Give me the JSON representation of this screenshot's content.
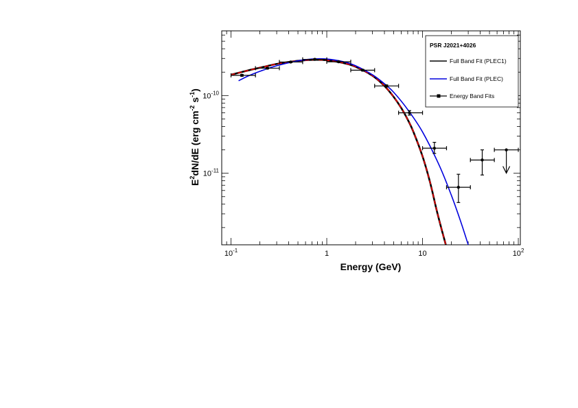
{
  "chart_data": {
    "type": "line",
    "title": "",
    "xlabel": "Energy (GeV)",
    "ylabel": "E²dN/dE (erg cm⁻² s⁻¹)",
    "x_scale": "log",
    "y_scale": "log",
    "xlim": [
      0.08,
      105
    ],
    "ylim": [
      1.2e-12,
      6.8e-10
    ],
    "x_ticks": [
      {
        "value": 0.1,
        "base": "10",
        "exp": "-1"
      },
      {
        "value": 1,
        "base": "1",
        "exp": ""
      },
      {
        "value": 10,
        "base": "10",
        "exp": ""
      },
      {
        "value": 100,
        "base": "10",
        "exp": "2"
      }
    ],
    "y_ticks": [
      {
        "value": 1e-10,
        "base": "10",
        "exp": "-10"
      },
      {
        "value": 1e-11,
        "base": "10",
        "exp": "-11"
      }
    ],
    "grid": false,
    "legend": {
      "position": "top-right",
      "title": "PSR J2021+4026",
      "entries": [
        {
          "label": "Full Band Fit (PLEC1)",
          "color": "#000000",
          "style": "line"
        },
        {
          "label": "Full Band Fit (PLEC)",
          "color": "#0000dd",
          "style": "line"
        },
        {
          "label": "Energy Band Fits",
          "color": "#000000",
          "style": "errorbar"
        }
      ]
    },
    "series": [
      {
        "name": "Full Band Fit (PLEC1)",
        "color": "#000000",
        "x": [
          0.1,
          0.15,
          0.2,
          0.3,
          0.4,
          0.5,
          0.7,
          1.0,
          1.5,
          2.0,
          3.0,
          4.0,
          5.0,
          6.0,
          7.0,
          8.0,
          10.0,
          12.0,
          14.0,
          16.0,
          17.5
        ],
        "y": [
          1.85e-10,
          2.1e-10,
          2.28e-10,
          2.55e-10,
          2.7e-10,
          2.8e-10,
          2.88e-10,
          2.85e-10,
          2.62e-10,
          2.35e-10,
          1.8e-10,
          1.33e-10,
          9.6e-11,
          6.9e-11,
          4.9e-11,
          3.45e-11,
          1.65e-11,
          7.6e-12,
          3.4e-12,
          1.8e-12,
          1.2e-12
        ]
      },
      {
        "name": "Full Band Fit (PLEC1, dashed)",
        "color": "#dd0000",
        "x": [
          0.1,
          0.15,
          0.2,
          0.3,
          0.4,
          0.5,
          0.7,
          1.0,
          1.5,
          2.0,
          3.0,
          4.0,
          5.0,
          6.0,
          7.0,
          8.0,
          10.0,
          12.0,
          14.0,
          16.0,
          17.5
        ],
        "y": [
          1.85e-10,
          2.1e-10,
          2.28e-10,
          2.55e-10,
          2.7e-10,
          2.8e-10,
          2.88e-10,
          2.85e-10,
          2.62e-10,
          2.35e-10,
          1.8e-10,
          1.33e-10,
          9.6e-11,
          6.9e-11,
          4.9e-11,
          3.45e-11,
          1.65e-11,
          7.6e-12,
          3.4e-12,
          1.8e-12,
          1.2e-12
        ]
      },
      {
        "name": "Full Band Fit (PLEC)",
        "color": "#0000dd",
        "x": [
          0.12,
          0.15,
          0.2,
          0.3,
          0.5,
          0.7,
          1.0,
          1.5,
          2.0,
          3.0,
          4.0,
          5.0,
          7.0,
          10.0,
          15.0,
          20.0,
          25.0,
          30.0
        ],
        "y": [
          1.55e-10,
          1.78e-10,
          2.05e-10,
          2.42e-10,
          2.8e-10,
          2.95e-10,
          2.95e-10,
          2.72e-10,
          2.42e-10,
          1.85e-10,
          1.42e-10,
          1.1e-10,
          6.6e-11,
          3.4e-11,
          1.25e-11,
          5.2e-12,
          2.4e-12,
          1.2e-12
        ]
      }
    ],
    "points": [
      {
        "x": 0.13,
        "y": 1.82e-10,
        "xerr": [
          0.1,
          0.18
        ],
        "yerr": [
          1.77e-10,
          1.87e-10
        ],
        "upper_limit": false
      },
      {
        "x": 0.24,
        "y": 2.25e-10,
        "xerr": [
          0.18,
          0.32
        ],
        "yerr": [
          2.2e-10,
          2.3e-10
        ],
        "upper_limit": false
      },
      {
        "x": 0.42,
        "y": 2.7e-10,
        "xerr": [
          0.32,
          0.56
        ],
        "yerr": [
          2.65e-10,
          2.75e-10
        ],
        "upper_limit": false
      },
      {
        "x": 0.75,
        "y": 2.92e-10,
        "xerr": [
          0.56,
          1.0
        ],
        "yerr": [
          2.87e-10,
          2.97e-10
        ],
        "upper_limit": false
      },
      {
        "x": 1.33,
        "y": 2.72e-10,
        "xerr": [
          1.0,
          1.78
        ],
        "yerr": [
          2.67e-10,
          2.77e-10
        ],
        "upper_limit": false
      },
      {
        "x": 2.37,
        "y": 2.12e-10,
        "xerr": [
          1.78,
          3.16
        ],
        "yerr": [
          2.07e-10,
          2.17e-10
        ],
        "upper_limit": false
      },
      {
        "x": 4.2,
        "y": 1.33e-10,
        "xerr": [
          3.16,
          5.62
        ],
        "yerr": [
          1.29e-10,
          1.37e-10
        ],
        "upper_limit": false
      },
      {
        "x": 7.3,
        "y": 6e-11,
        "xerr": [
          5.62,
          10.0
        ],
        "yerr": [
          5.6e-11,
          6.4e-11
        ],
        "upper_limit": false
      },
      {
        "x": 13.3,
        "y": 2.1e-11,
        "xerr": [
          10.0,
          17.8
        ],
        "yerr": [
          1.8e-11,
          2.5e-11
        ],
        "upper_limit": false
      },
      {
        "x": 23.7,
        "y": 6.6e-12,
        "xerr": [
          17.8,
          31.6
        ],
        "yerr": [
          4.2e-12,
          9.7e-12
        ],
        "upper_limit": false
      },
      {
        "x": 42.0,
        "y": 1.48e-11,
        "xerr": [
          31.6,
          56.2
        ],
        "yerr": [
          9.5e-12,
          2e-11
        ],
        "upper_limit": false
      },
      {
        "x": 75.0,
        "y": 2e-11,
        "xerr": [
          56.2,
          100.0
        ],
        "yerr": null,
        "upper_limit": true
      }
    ]
  }
}
